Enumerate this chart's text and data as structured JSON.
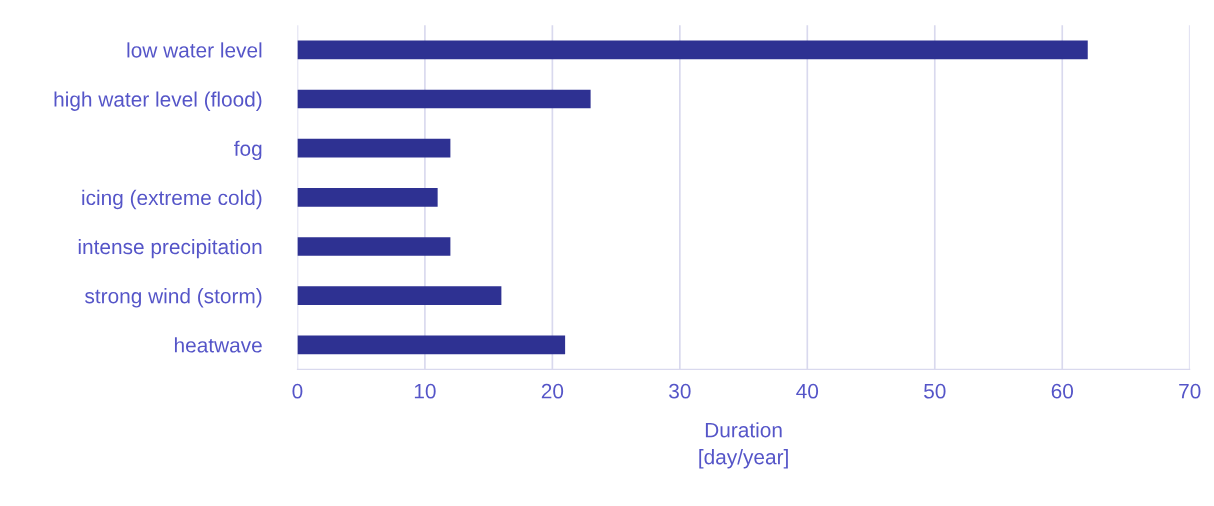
{
  "chart_data": {
    "type": "bar",
    "orientation": "horizontal",
    "categories": [
      "low water level",
      "high water level (flood)",
      "fog",
      "icing (extreme cold)",
      "intense precipitation",
      "strong wind (storm)",
      "heatwave"
    ],
    "values": [
      62,
      23,
      12,
      11,
      12,
      16,
      21
    ],
    "color": "#2e3192",
    "xlabel": "Duration\n[day/year]",
    "xlim": [
      0,
      70
    ],
    "xticks": [
      0,
      10,
      20,
      30,
      40,
      50,
      60,
      70
    ],
    "grid": "x"
  }
}
